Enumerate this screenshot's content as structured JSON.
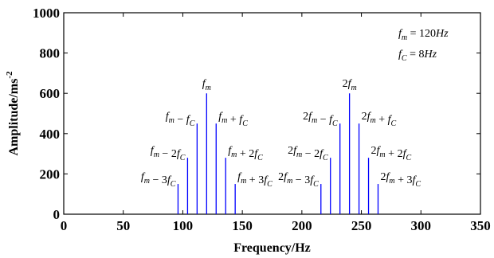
{
  "chart_data": {
    "type": "bar",
    "xlabel": "Frequency/Hz",
    "ylabel": "Amplitude/ms",
    "ylabel_sup": "-2",
    "xlim": [
      0,
      350
    ],
    "ylim": [
      0,
      1000
    ],
    "xticks": [
      0,
      50,
      100,
      150,
      200,
      250,
      300,
      350
    ],
    "yticks": [
      0,
      200,
      400,
      600,
      800,
      1000
    ],
    "grid": false,
    "bar_color": "#0000ff",
    "series": [
      {
        "x": [
          96,
          104,
          112,
          120,
          128,
          136,
          144
        ],
        "values": [
          150,
          280,
          450,
          600,
          450,
          280,
          150
        ]
      },
      {
        "x": [
          216,
          224,
          232,
          240,
          248,
          256,
          264
        ],
        "values": [
          150,
          280,
          450,
          600,
          450,
          280,
          150
        ]
      }
    ],
    "peak_labels": [
      {
        "text": "f_m - 3f_C",
        "x": 96,
        "y": 150,
        "side": "left"
      },
      {
        "text": "f_m - 2f_C",
        "x": 104,
        "y": 280,
        "side": "left"
      },
      {
        "text": "f_m - f_C",
        "x": 112,
        "y": 450,
        "side": "left"
      },
      {
        "text": "f_m",
        "x": 120,
        "y": 600,
        "side": "center"
      },
      {
        "text": "f_m + f_C",
        "x": 128,
        "y": 450,
        "side": "right"
      },
      {
        "text": "f_m + 2f_C",
        "x": 136,
        "y": 280,
        "side": "right"
      },
      {
        "text": "f_m + 3f_C",
        "x": 144,
        "y": 150,
        "side": "right"
      },
      {
        "text": "2f_m - 3f_C",
        "x": 216,
        "y": 150,
        "side": "left"
      },
      {
        "text": "2f_m - 2f_C",
        "x": 224,
        "y": 280,
        "side": "left"
      },
      {
        "text": "2f_m - f_C",
        "x": 232,
        "y": 450,
        "side": "left"
      },
      {
        "text": "2f_m",
        "x": 240,
        "y": 600,
        "side": "center"
      },
      {
        "text": "2f_m + f_C",
        "x": 248,
        "y": 450,
        "side": "right"
      },
      {
        "text": "2f_m + 2f_C",
        "x": 256,
        "y": 280,
        "side": "right"
      },
      {
        "text": "2f_m + 3f_C",
        "x": 264,
        "y": 150,
        "side": "right"
      }
    ],
    "legend_annotations": [
      {
        "symbol": "f",
        "sub": "m",
        "rest": " = 120",
        "unit": "Hz"
      },
      {
        "symbol": "f",
        "sub": "C",
        "rest": " = 8",
        "unit": "Hz"
      }
    ]
  }
}
